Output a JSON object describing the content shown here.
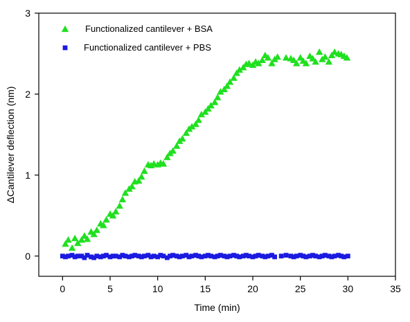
{
  "chart_data": {
    "type": "scatter",
    "title": "",
    "xlabel": "Time (min)",
    "ylabel": "ΔCantilever deflection (nm)",
    "xlim": [
      -2.5,
      35
    ],
    "ylim": [
      -0.25,
      3
    ],
    "xticks": [
      0,
      5,
      10,
      15,
      20,
      25,
      30,
      35
    ],
    "yticks": [
      0,
      1,
      2,
      3
    ],
    "grid": false,
    "legend_position": "top-left",
    "series": [
      {
        "name": "Functionalized cantilever + BSA",
        "marker": "triangle-up",
        "color": "#1fe01f",
        "points": [
          [
            0.3,
            0.15
          ],
          [
            0.6,
            0.2
          ],
          [
            1.0,
            0.1
          ],
          [
            1.3,
            0.22
          ],
          [
            1.6,
            0.16
          ],
          [
            2.0,
            0.2
          ],
          [
            2.3,
            0.25
          ],
          [
            2.6,
            0.21
          ],
          [
            3.0,
            0.3
          ],
          [
            3.3,
            0.27
          ],
          [
            3.6,
            0.32
          ],
          [
            4.0,
            0.4
          ],
          [
            4.3,
            0.38
          ],
          [
            4.6,
            0.45
          ],
          [
            5.0,
            0.52
          ],
          [
            5.3,
            0.5
          ],
          [
            5.6,
            0.55
          ],
          [
            6.0,
            0.62
          ],
          [
            6.3,
            0.7
          ],
          [
            6.6,
            0.78
          ],
          [
            7.0,
            0.83
          ],
          [
            7.3,
            0.86
          ],
          [
            7.6,
            0.92
          ],
          [
            8.0,
            0.93
          ],
          [
            8.3,
            0.98
          ],
          [
            8.6,
            1.05
          ],
          [
            9.0,
            1.13
          ],
          [
            9.3,
            1.12
          ],
          [
            9.6,
            1.14
          ],
          [
            10.0,
            1.13
          ],
          [
            10.3,
            1.15
          ],
          [
            10.6,
            1.14
          ],
          [
            11.0,
            1.22
          ],
          [
            11.3,
            1.27
          ],
          [
            11.6,
            1.3
          ],
          [
            12.0,
            1.36
          ],
          [
            12.3,
            1.42
          ],
          [
            12.6,
            1.45
          ],
          [
            13.0,
            1.52
          ],
          [
            13.3,
            1.57
          ],
          [
            13.6,
            1.6
          ],
          [
            14.0,
            1.63
          ],
          [
            14.3,
            1.68
          ],
          [
            14.6,
            1.75
          ],
          [
            15.0,
            1.78
          ],
          [
            15.3,
            1.82
          ],
          [
            15.6,
            1.86
          ],
          [
            16.0,
            1.9
          ],
          [
            16.3,
            1.96
          ],
          [
            16.6,
            2.03
          ],
          [
            17.0,
            2.06
          ],
          [
            17.3,
            2.1
          ],
          [
            17.6,
            2.15
          ],
          [
            18.0,
            2.2
          ],
          [
            18.3,
            2.26
          ],
          [
            18.6,
            2.3
          ],
          [
            19.0,
            2.33
          ],
          [
            19.3,
            2.37
          ],
          [
            19.6,
            2.38
          ],
          [
            20.0,
            2.36
          ],
          [
            20.3,
            2.4
          ],
          [
            20.6,
            2.38
          ],
          [
            21.0,
            2.42
          ],
          [
            21.3,
            2.48
          ],
          [
            21.6,
            2.45
          ],
          [
            22.0,
            2.38
          ],
          [
            22.3,
            2.43
          ],
          [
            22.6,
            2.46
          ],
          [
            23.5,
            2.45
          ],
          [
            24.0,
            2.44
          ],
          [
            24.3,
            2.42
          ],
          [
            24.6,
            2.38
          ],
          [
            25.0,
            2.45
          ],
          [
            25.3,
            2.41
          ],
          [
            25.6,
            2.38
          ],
          [
            26.0,
            2.47
          ],
          [
            26.3,
            2.44
          ],
          [
            26.6,
            2.4
          ],
          [
            27.0,
            2.52
          ],
          [
            27.3,
            2.43
          ],
          [
            27.6,
            2.46
          ],
          [
            28.0,
            2.4
          ],
          [
            28.3,
            2.48
          ],
          [
            28.6,
            2.52
          ],
          [
            29.0,
            2.5
          ],
          [
            29.3,
            2.49
          ],
          [
            29.6,
            2.47
          ],
          [
            29.9,
            2.45
          ]
        ]
      },
      {
        "name": "Functionalized cantilever + PBS",
        "marker": "square",
        "color": "#1a1ae0",
        "points": [
          [
            0.0,
            0.0
          ],
          [
            0.3,
            -0.01
          ],
          [
            0.6,
            0.0
          ],
          [
            1.0,
            0.01
          ],
          [
            1.3,
            -0.01
          ],
          [
            1.6,
            0.0
          ],
          [
            2.0,
            0.0
          ],
          [
            2.3,
            -0.02
          ],
          [
            2.6,
            0.01
          ],
          [
            3.0,
            -0.01
          ],
          [
            3.3,
            -0.02
          ],
          [
            3.6,
            0.0
          ],
          [
            4.0,
            -0.01
          ],
          [
            4.3,
            0.0
          ],
          [
            4.6,
            0.01
          ],
          [
            5.0,
            -0.01
          ],
          [
            5.3,
            0.0
          ],
          [
            5.6,
            0.0
          ],
          [
            6.0,
            -0.01
          ],
          [
            6.3,
            0.01
          ],
          [
            6.6,
            0.0
          ],
          [
            7.0,
            -0.01
          ],
          [
            7.3,
            0.0
          ],
          [
            7.6,
            0.01
          ],
          [
            8.0,
            0.0
          ],
          [
            8.3,
            -0.01
          ],
          [
            8.6,
            0.0
          ],
          [
            9.0,
            0.01
          ],
          [
            9.3,
            -0.01
          ],
          [
            9.6,
            0.0
          ],
          [
            10.0,
            -0.01
          ],
          [
            10.3,
            0.01
          ],
          [
            10.6,
            0.0
          ],
          [
            11.0,
            -0.02
          ],
          [
            11.3,
            0.0
          ],
          [
            11.6,
            0.01
          ],
          [
            12.0,
            0.0
          ],
          [
            12.3,
            -0.01
          ],
          [
            12.6,
            0.0
          ],
          [
            13.0,
            0.01
          ],
          [
            13.3,
            -0.01
          ],
          [
            13.6,
            0.0
          ],
          [
            14.0,
            0.01
          ],
          [
            14.3,
            0.0
          ],
          [
            14.6,
            -0.01
          ],
          [
            15.0,
            0.0
          ],
          [
            15.3,
            0.01
          ],
          [
            15.6,
            0.0
          ],
          [
            16.0,
            -0.01
          ],
          [
            16.3,
            0.0
          ],
          [
            16.6,
            0.01
          ],
          [
            17.0,
            0.0
          ],
          [
            17.3,
            -0.01
          ],
          [
            17.6,
            0.0
          ],
          [
            18.0,
            0.01
          ],
          [
            18.3,
            0.0
          ],
          [
            18.6,
            -0.01
          ],
          [
            19.0,
            0.0
          ],
          [
            19.3,
            0.01
          ],
          [
            19.6,
            0.0
          ],
          [
            20.0,
            -0.01
          ],
          [
            20.3,
            0.0
          ],
          [
            20.6,
            0.01
          ],
          [
            21.0,
            0.0
          ],
          [
            21.3,
            -0.01
          ],
          [
            21.6,
            0.0
          ],
          [
            22.0,
            0.01
          ],
          [
            22.3,
            -0.01
          ],
          [
            23.0,
            0.0
          ],
          [
            23.5,
            0.01
          ],
          [
            24.0,
            0.0
          ],
          [
            24.3,
            -0.01
          ],
          [
            24.6,
            0.0
          ],
          [
            25.0,
            0.01
          ],
          [
            25.3,
            0.0
          ],
          [
            25.6,
            -0.01
          ],
          [
            26.0,
            0.0
          ],
          [
            26.3,
            0.01
          ],
          [
            26.6,
            0.0
          ],
          [
            27.0,
            -0.01
          ],
          [
            27.3,
            0.0
          ],
          [
            27.6,
            0.01
          ],
          [
            28.0,
            0.0
          ],
          [
            28.3,
            -0.01
          ],
          [
            28.6,
            0.0
          ],
          [
            29.0,
            0.01
          ],
          [
            29.3,
            0.0
          ],
          [
            29.6,
            -0.01
          ],
          [
            30.0,
            0.0
          ]
        ]
      }
    ]
  }
}
